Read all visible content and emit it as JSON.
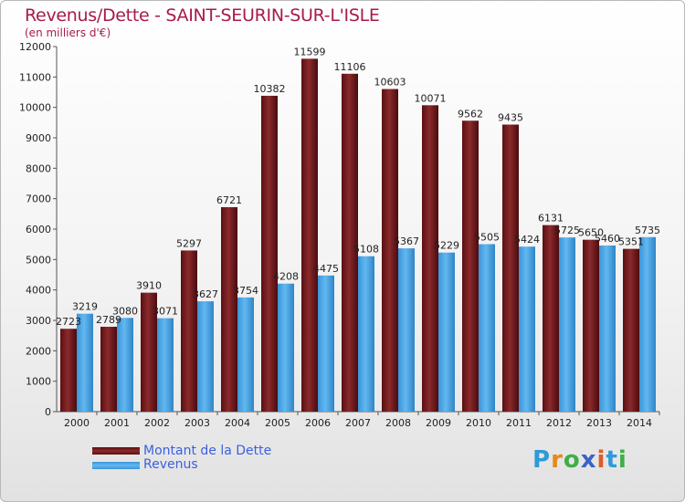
{
  "chart_data": {
    "type": "bar",
    "title": "Revenus/Dette - SAINT-SEURIN-SUR-L'ISLE",
    "subtitle": "(en milliers d'€)",
    "categories": [
      "2000",
      "2001",
      "2002",
      "2003",
      "2004",
      "2005",
      "2006",
      "2007",
      "2008",
      "2009",
      "2010",
      "2011",
      "2012",
      "2013",
      "2014"
    ],
    "series": [
      {
        "name": "Montant de la Dette",
        "color": "#7a1a1a",
        "values": [
          2723,
          2789,
          3910,
          5297,
          6721,
          10382,
          11599,
          11106,
          10603,
          10071,
          9562,
          9435,
          6131,
          5650,
          5351
        ]
      },
      {
        "name": "Revenus",
        "color": "#4aa8ec",
        "values": [
          3219,
          3080,
          3071,
          3627,
          3754,
          4208,
          4475,
          5108,
          5367,
          5229,
          5505,
          5424,
          5725,
          5460,
          5735
        ]
      }
    ],
    "data_labels": [
      [
        "2723",
        "2789",
        "3910",
        "5297",
        "6721",
        "10382",
        "11599",
        "11106",
        "10603",
        "10071",
        "9562",
        "9435",
        "6131",
        "5650",
        "5351"
      ],
      [
        "3219",
        "3080",
        "3071",
        "3627",
        "3754",
        "4208",
        "4475",
        "5108",
        "5367",
        "5229",
        "5505",
        "5424",
        "5725",
        "5460",
        "5735"
      ]
    ],
    "ylim": [
      0,
      12000
    ],
    "yticks": [
      0,
      1000,
      2000,
      3000,
      4000,
      5000,
      6000,
      7000,
      8000,
      9000,
      10000,
      11000,
      12000
    ],
    "ytick_labels": [
      "0",
      "1000",
      "2000",
      "3000",
      "4000",
      "5000",
      "6000",
      "7000",
      "8000",
      "9000",
      "10000",
      "11000",
      "12000"
    ],
    "xlabel": "",
    "ylabel": "",
    "grid": false,
    "legend": "bottom-left"
  },
  "legend": {
    "debt_label": "Montant de la Dette",
    "revenue_label": "Revenus"
  },
  "brand": {
    "letters": [
      "P",
      "r",
      "o",
      "x",
      "i",
      "t",
      "i"
    ]
  }
}
